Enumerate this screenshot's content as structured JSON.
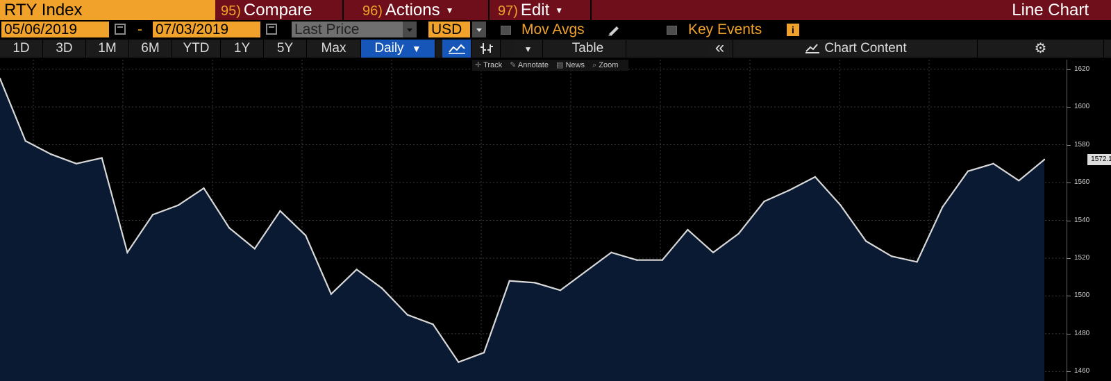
{
  "header": {
    "ticker": "RTY Index",
    "menus": [
      {
        "num": "95)",
        "label": "Compare",
        "dropdown": false
      },
      {
        "num": "96)",
        "label": "Actions",
        "dropdown": true
      },
      {
        "num": "97)",
        "label": "Edit",
        "dropdown": true
      }
    ],
    "view_title": "Line Chart",
    "accent_color": "#f0a22a",
    "bar_color": "#6e0f1b"
  },
  "controls": {
    "start_date": "05/06/2019",
    "date_separator": "-",
    "end_date": "07/03/2019",
    "field": "Last Price",
    "currency": "USD",
    "mov_avgs_label": "Mov Avgs",
    "mov_avgs_checked": false,
    "key_events_label": "Key Events",
    "key_events_checked": false,
    "calendar_icon": "calendar-icon",
    "info_icon_glyph": "i"
  },
  "toolbar": {
    "ranges": [
      "1D",
      "3D",
      "1M",
      "6M",
      "YTD",
      "1Y",
      "5Y",
      "Max"
    ],
    "periodicity": "Daily",
    "table_label": "Table",
    "collapse_glyph": "«",
    "chart_content_label": "Chart Content",
    "settings_icon": "gear-icon"
  },
  "chart_tools": [
    "Track",
    "Annotate",
    "News",
    "Zoom"
  ],
  "chart_data": {
    "type": "area",
    "ylim": [
      1455,
      1625
    ],
    "yticks": [
      1460,
      1480,
      1500,
      1520,
      1540,
      1560,
      1580,
      1600,
      1620
    ],
    "grid": true,
    "series": [
      {
        "values": [
          1615,
          1582,
          1575,
          1570,
          1573,
          1523,
          1543,
          1548,
          1557,
          1536,
          1525,
          1545,
          1532,
          1501,
          1514,
          1504,
          1490,
          1485,
          1465,
          1470,
          1508,
          1507,
          1503,
          1513,
          1523,
          1519,
          1519,
          1535,
          1523,
          1533,
          1550,
          1556,
          1563,
          1548,
          1529,
          1521,
          1518,
          1547,
          1566,
          1570,
          1561,
          1572.122
        ]
      }
    ],
    "last_value_label": "1572.122",
    "line_color": "#d9d9d9",
    "fill_color": "#0a1a33"
  }
}
